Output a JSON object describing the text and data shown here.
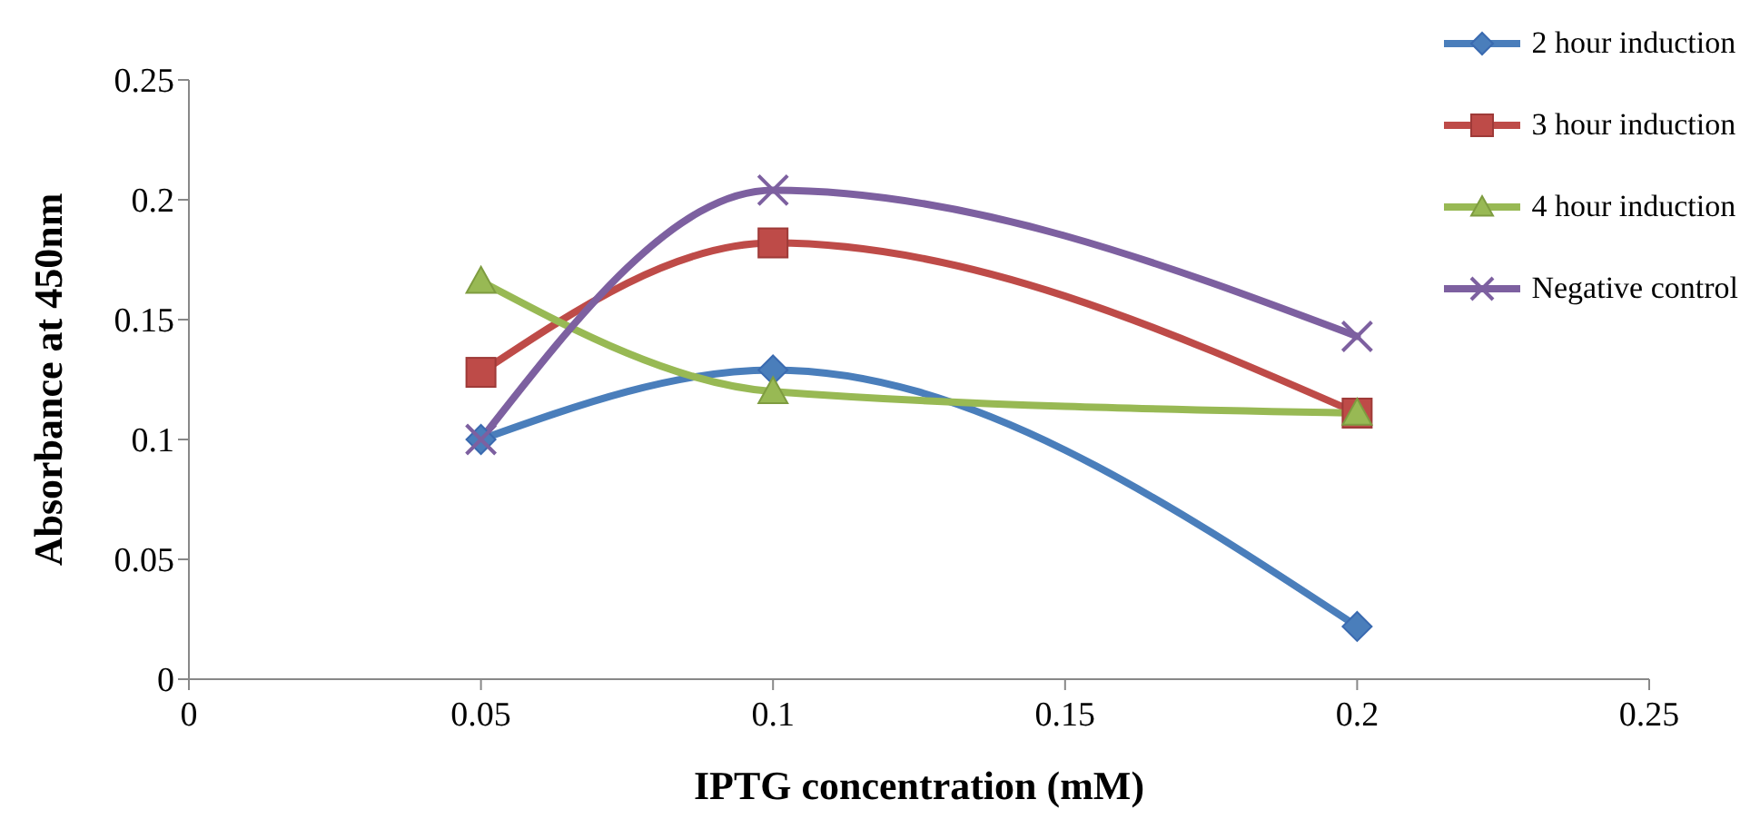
{
  "chart_data": {
    "type": "line",
    "xlabel": "IPTG concentration (mM)",
    "ylabel": "Absorbance at 450nm",
    "x": [
      0.05,
      0.1,
      0.2
    ],
    "series": [
      {
        "name": "2 hour induction",
        "color": "#4a7ebb",
        "marker": "diamond",
        "values": [
          0.1,
          0.129,
          0.022
        ]
      },
      {
        "name": "3 hour induction",
        "color": "#be4b48",
        "marker": "square",
        "values": [
          0.128,
          0.182,
          0.111
        ]
      },
      {
        "name": "4 hour induction",
        "color": "#98b954",
        "marker": "triangle",
        "values": [
          0.166,
          0.12,
          0.111
        ]
      },
      {
        "name": "Negative control",
        "color": "#7d60a0",
        "marker": "cross",
        "values": [
          0.1,
          0.204,
          0.143
        ]
      }
    ],
    "xlim": [
      0,
      0.25
    ],
    "xticks": [
      0,
      0.05,
      0.1,
      0.15,
      0.2,
      0.25
    ],
    "ylim": [
      0,
      0.25
    ],
    "yticks": [
      0,
      0.05,
      0.1,
      0.15,
      0.2,
      0.25
    ],
    "grid": false,
    "legend": "top right"
  }
}
